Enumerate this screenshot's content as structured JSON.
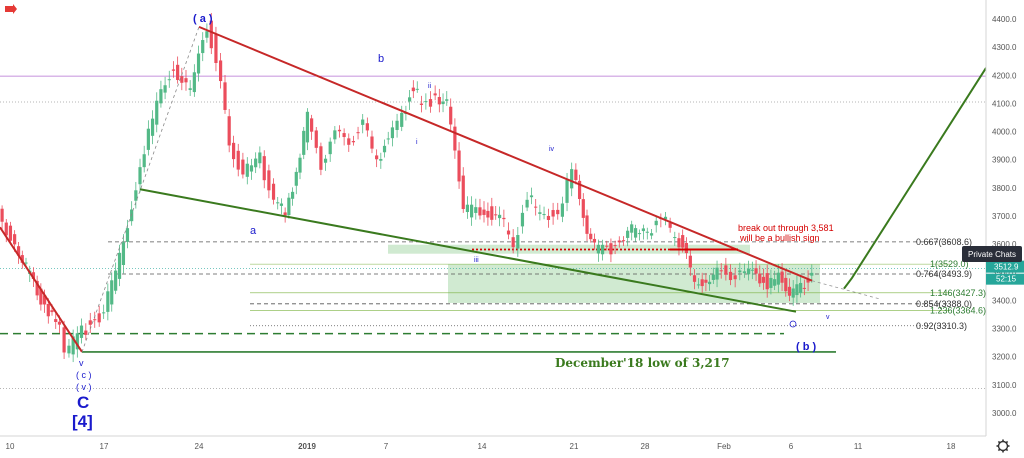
{
  "chart_data": {
    "type": "candlestick",
    "yaxis": {
      "range": [
        2930,
        4460
      ],
      "ticks": [
        3000,
        3100,
        3200,
        3300,
        3400,
        3500,
        3600,
        3700,
        3800,
        3900,
        4000,
        4100,
        4200,
        4300,
        4400
      ],
      "tick_labels": [
        "3000.0",
        "3100.0",
        "3200.0",
        "3300.0",
        "3400.0",
        "3500.0",
        "3600.0",
        "3700.0",
        "3800.0",
        "3900.0",
        "4000.0",
        "4100.0",
        "4200.0",
        "4300.0",
        "4400.0"
      ]
    },
    "xaxis": {
      "labels": [
        "10",
        "17",
        "24",
        "2019",
        "7",
        "14",
        "21",
        "28",
        "Feb",
        "11",
        "18"
      ],
      "extra_labels": [
        "4",
        "6"
      ]
    },
    "price_path": [
      [
        3500,
        3700
      ],
      [
        3560,
        3600
      ],
      [
        3600,
        3520
      ],
      [
        3640,
        3430
      ],
      [
        3680,
        3370
      ],
      [
        3720,
        3300
      ],
      [
        3740,
        3217
      ],
      [
        3800,
        3290
      ],
      [
        3880,
        3360
      ],
      [
        3950,
        3600
      ],
      [
        4010,
        3880
      ],
      [
        4070,
        4100
      ],
      [
        4130,
        4230
      ],
      [
        4190,
        4150
      ],
      [
        4250,
        4380
      ],
      [
        4300,
        4200
      ],
      [
        4330,
        3950
      ],
      [
        4380,
        3850
      ],
      [
        4440,
        3900
      ],
      [
        4490,
        3760
      ],
      [
        4530,
        3700
      ],
      [
        4570,
        3860
      ],
      [
        4610,
        4050
      ],
      [
        4660,
        3880
      ],
      [
        4710,
        4020
      ],
      [
        4760,
        3950
      ],
      [
        4810,
        4050
      ],
      [
        4860,
        3880
      ],
      [
        4900,
        3990
      ],
      [
        4950,
        4050
      ],
      [
        4990,
        4170
      ],
      [
        5020,
        4080
      ],
      [
        5070,
        4130
      ],
      [
        5110,
        4100
      ],
      [
        5140,
        3920
      ],
      [
        5170,
        3730
      ],
      [
        5230,
        3700
      ],
      [
        5300,
        3720
      ],
      [
        5350,
        3580
      ],
      [
        5400,
        3780
      ],
      [
        5460,
        3680
      ],
      [
        5510,
        3720
      ],
      [
        5560,
        3850
      ],
      [
        5600,
        3700
      ],
      [
        5640,
        3580
      ],
      [
        5700,
        3590
      ],
      [
        5760,
        3650
      ],
      [
        5830,
        3630
      ],
      [
        5880,
        3710
      ],
      [
        5930,
        3620
      ],
      [
        5970,
        3580
      ],
      [
        6000,
        3440
      ],
      [
        6040,
        3470
      ],
      [
        6080,
        3510
      ],
      [
        6130,
        3480
      ],
      [
        6180,
        3520
      ],
      [
        6220,
        3490
      ],
      [
        6260,
        3460
      ],
      [
        6300,
        3480
      ],
      [
        6340,
        3430
      ],
      [
        6380,
        3440
      ],
      [
        6420,
        3512
      ]
    ],
    "price_badges": [
      {
        "label": "3512.9",
        "time": "52:15",
        "color": "#26a69a"
      }
    ],
    "horizontal_levels": [
      {
        "value": 4197,
        "color": "#b36fd1",
        "style": "solid"
      },
      {
        "value": 4105,
        "color": "#9e9e9e",
        "style": "dotted"
      },
      {
        "value": 3608,
        "color": "#555555",
        "style": "dashed",
        "label": "0.667(3608.6)"
      },
      {
        "value": 3494,
        "color": "#555555",
        "style": "dashed",
        "label": "0.764(3493.9)"
      },
      {
        "value": 3388,
        "color": "#555555",
        "style": "dashed",
        "label": "0.854(3388.0)"
      },
      {
        "value": 3310,
        "color": "#555555",
        "style": "dotted",
        "label": "0.92(3310.3)"
      },
      {
        "value": 3087,
        "color": "#9e9e9e",
        "style": "dotted"
      },
      {
        "value": 3217,
        "color": "#2e7d32",
        "style": "solid"
      },
      {
        "value": 3282,
        "color": "#2e7d32",
        "style": "dashed"
      },
      {
        "value": 3581,
        "color": "#d50000",
        "style": "dotted"
      }
    ],
    "fib_green_labels": [
      {
        "value": 3529,
        "label": "1(3529.0)"
      },
      {
        "value": 3427,
        "label": "1.146(3427.3)"
      },
      {
        "value": 3365,
        "label": "1.236(3364.6)"
      }
    ],
    "zones": [
      {
        "from": 3566,
        "to": 3598,
        "color": "#c8e6c9"
      },
      {
        "from": 3391,
        "to": 3529,
        "color": "#c8e6c9"
      }
    ],
    "wave_labels": {
      "a_top": "( a )",
      "b_top": "b",
      "a_low": "a",
      "i": "i",
      "ii": "ii",
      "iii": "iii",
      "iv": "iv",
      "v_low": "v",
      "v_bottom": "v",
      "b_paren": "( b )",
      "c_paren": "( c )",
      "v_paren": "( v )",
      "big_c": "C",
      "big_4": "[4]"
    },
    "annotations": {
      "breakout_line1": "break out through 3,581",
      "breakout_line2": "will be a bullish sign",
      "december_low": "December'18 low of 3,217"
    }
  },
  "ui": {
    "private_chats": "Private Chats",
    "price_tag": "3512.9",
    "time_tag": "52:15",
    "settings_icon": "gear-icon",
    "logo_icon": "arrow-icon"
  }
}
